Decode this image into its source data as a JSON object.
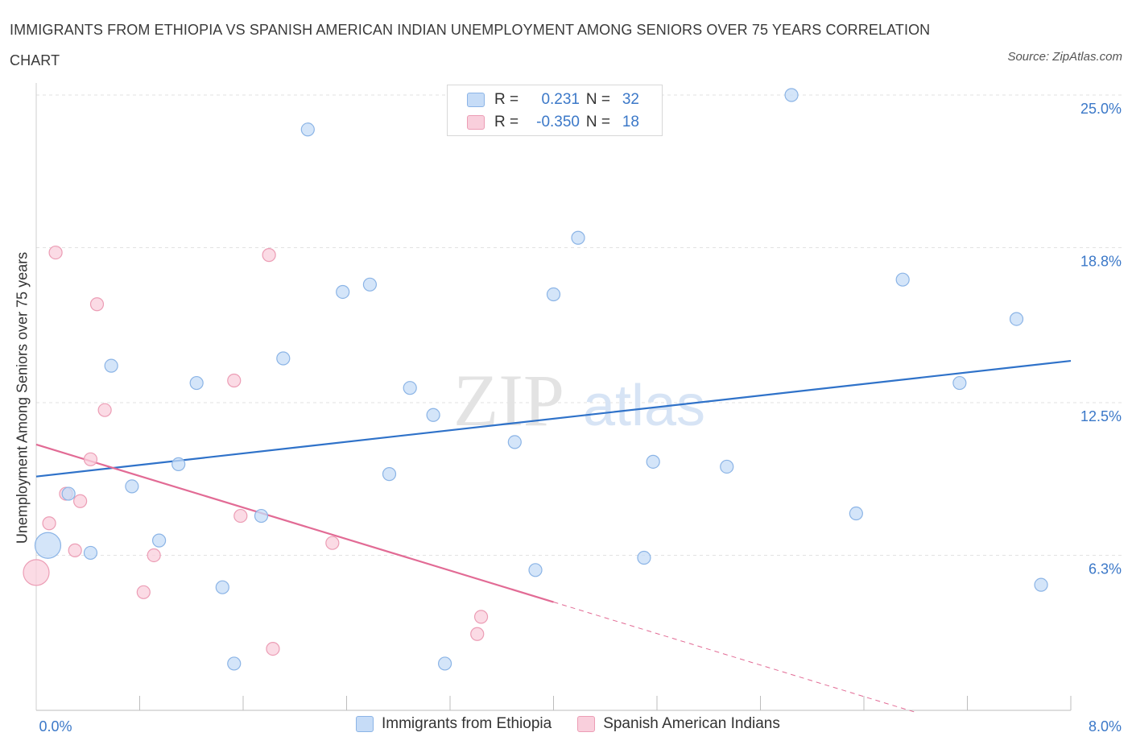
{
  "title": "IMMIGRANTS FROM ETHIOPIA VS SPANISH AMERICAN INDIAN UNEMPLOYMENT AMONG SENIORS OVER 75 YEARS CORRELATION CHART",
  "source": "Source: ZipAtlas.com",
  "watermark": {
    "zip": "ZIP",
    "atlas": "atlas"
  },
  "colors": {
    "blue_fill": "#c6dcf7",
    "blue_stroke": "#8bb4e6",
    "blue_line": "#2f72c9",
    "pink_fill": "#f9cfdc",
    "pink_stroke": "#ec9db5",
    "pink_line": "#e26b95",
    "tick_label": "#3b78c8"
  },
  "legend": {
    "rows": [
      {
        "r_label": "R =",
        "r_value": "0.231",
        "n_label": "N =",
        "n_value": "32"
      },
      {
        "r_label": "R =",
        "r_value": "-0.350",
        "n_label": "N =",
        "n_value": "18"
      }
    ]
  },
  "bottom_legend": [
    "Immigrants from Ethiopia",
    "Spanish American Indians"
  ],
  "chart_data": {
    "type": "scatter",
    "title": "IMMIGRANTS FROM ETHIOPIA VS SPANISH AMERICAN INDIAN UNEMPLOYMENT AMONG SENIORS OVER 75 YEARS CORRELATION CHART",
    "xlabel": "",
    "ylabel": "Unemployment Among Seniors over 75 years",
    "xlim": [
      0,
      8
    ],
    "ylim": [
      0,
      25
    ],
    "x_tick_labels": [
      "0.0%",
      "8.0%"
    ],
    "y_ticks": [
      6.3,
      12.5,
      18.8,
      25.0
    ],
    "y_tick_labels": [
      "6.3%",
      "12.5%",
      "18.8%",
      "25.0%"
    ],
    "grid": "horizontal dashed",
    "series": [
      {
        "name": "Immigrants from Ethiopia",
        "color": "#c6dcf7",
        "points": [
          {
            "x": 0.09,
            "y": 6.7,
            "size": "large"
          },
          {
            "x": 0.25,
            "y": 8.8
          },
          {
            "x": 0.42,
            "y": 6.4
          },
          {
            "x": 0.58,
            "y": 14.0
          },
          {
            "x": 0.74,
            "y": 9.1
          },
          {
            "x": 0.95,
            "y": 6.9
          },
          {
            "x": 1.1,
            "y": 10.0
          },
          {
            "x": 1.24,
            "y": 13.3
          },
          {
            "x": 1.44,
            "y": 5.0
          },
          {
            "x": 1.53,
            "y": 1.9
          },
          {
            "x": 1.74,
            "y": 7.9
          },
          {
            "x": 1.91,
            "y": 14.3
          },
          {
            "x": 2.1,
            "y": 23.6
          },
          {
            "x": 2.37,
            "y": 17.0
          },
          {
            "x": 2.58,
            "y": 17.3
          },
          {
            "x": 2.73,
            "y": 9.6
          },
          {
            "x": 2.89,
            "y": 13.1
          },
          {
            "x": 3.07,
            "y": 12.0
          },
          {
            "x": 3.16,
            "y": 1.9
          },
          {
            "x": 3.7,
            "y": 10.9
          },
          {
            "x": 3.86,
            "y": 5.7
          },
          {
            "x": 4.0,
            "y": 16.9
          },
          {
            "x": 4.19,
            "y": 19.2
          },
          {
            "x": 4.7,
            "y": 6.2
          },
          {
            "x": 4.77,
            "y": 10.1
          },
          {
            "x": 5.34,
            "y": 9.9
          },
          {
            "x": 5.84,
            "y": 25.0
          },
          {
            "x": 6.34,
            "y": 8.0
          },
          {
            "x": 6.7,
            "y": 17.5
          },
          {
            "x": 7.14,
            "y": 13.3
          },
          {
            "x": 7.58,
            "y": 15.9
          },
          {
            "x": 7.77,
            "y": 5.1
          }
        ],
        "trend": {
          "x0": 0.0,
          "y0": 9.5,
          "x1": 8.0,
          "y1": 14.2
        }
      },
      {
        "name": "Spanish American Indians",
        "color": "#f9cfdc",
        "points": [
          {
            "x": 0.0,
            "y": 5.6,
            "size": "large"
          },
          {
            "x": 0.1,
            "y": 7.6
          },
          {
            "x": 0.15,
            "y": 18.6
          },
          {
            "x": 0.23,
            "y": 8.8
          },
          {
            "x": 0.3,
            "y": 6.5
          },
          {
            "x": 0.34,
            "y": 8.5
          },
          {
            "x": 0.42,
            "y": 10.2
          },
          {
            "x": 0.47,
            "y": 16.5
          },
          {
            "x": 0.53,
            "y": 12.2
          },
          {
            "x": 0.83,
            "y": 4.8
          },
          {
            "x": 0.91,
            "y": 6.3
          },
          {
            "x": 1.53,
            "y": 13.4
          },
          {
            "x": 1.58,
            "y": 7.9
          },
          {
            "x": 1.8,
            "y": 18.5
          },
          {
            "x": 1.83,
            "y": 2.5
          },
          {
            "x": 2.29,
            "y": 6.8
          },
          {
            "x": 3.41,
            "y": 3.1
          },
          {
            "x": 3.44,
            "y": 3.8
          }
        ],
        "trend": {
          "x0": 0.0,
          "y0": 10.8,
          "x1": 4.0,
          "y1": 4.4,
          "dashed_to_x": 6.8
        }
      }
    ]
  }
}
